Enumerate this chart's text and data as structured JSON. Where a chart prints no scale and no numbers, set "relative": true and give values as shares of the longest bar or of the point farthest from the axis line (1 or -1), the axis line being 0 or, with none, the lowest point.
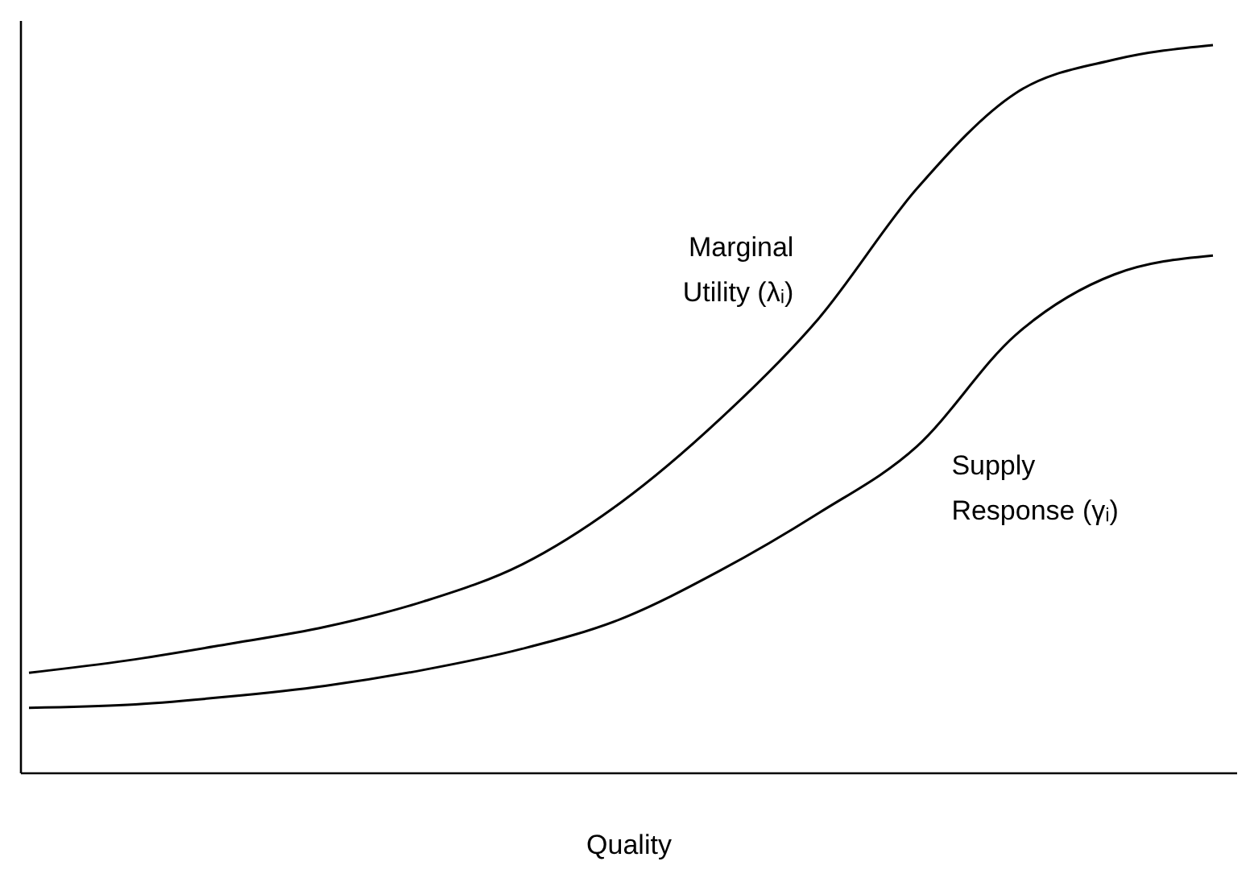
{
  "chart_data": {
    "type": "line",
    "relative": true,
    "xlabel": "Quality",
    "categories": [
      null,
      null,
      null,
      null,
      null,
      null,
      null,
      null,
      null,
      null,
      null,
      null,
      null
    ],
    "series": [
      {
        "name": "Marginal Utility (λᵢ)",
        "color": "#000000",
        "values": [
          0.138,
          0.155,
          0.177,
          0.201,
          0.236,
          0.287,
          0.372,
          0.486,
          0.624,
          0.803,
          0.934,
          0.98,
          1
        ]
      },
      {
        "name": "Supply Response (γᵢ)",
        "color": "#000000",
        "values": [
          0.09,
          0.094,
          0.105,
          0.12,
          0.142,
          0.171,
          0.212,
          0.278,
          0.357,
          0.449,
          0.602,
          0.685,
          0.711
        ]
      }
    ],
    "marker": "none",
    "line_style": "solid"
  }
}
